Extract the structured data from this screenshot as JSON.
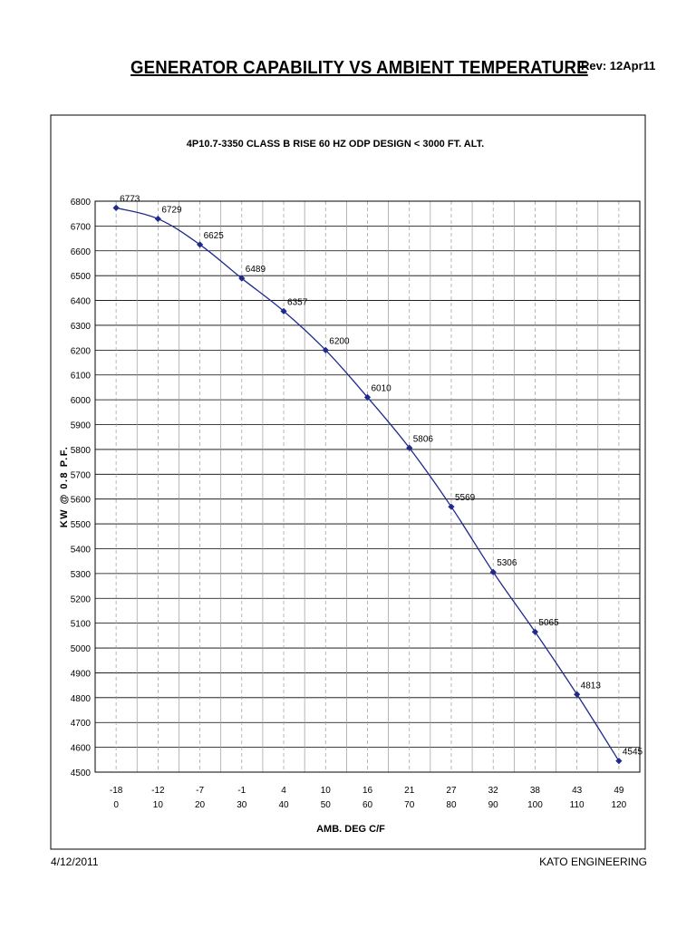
{
  "page": {
    "title": "GENERATOR CAPABILITY  VS  AMBIENT TEMPERATURE",
    "revision": "Rev: 12Apr11",
    "footer_date": "4/12/2011",
    "footer_company": "KATO ENGINEERING"
  },
  "chart_data": {
    "type": "line",
    "title": "4P10.7-3350  CLASS B RISE  60 HZ  ODP DESIGN  < 3000 FT. ALT.",
    "xlabel": "AMB. DEG C/F",
    "ylabel": "KW @ 0.8 P.F.",
    "x_celsius": [
      "-18",
      "-12",
      "-7",
      "-1",
      "4",
      "10",
      "16",
      "21",
      "27",
      "32",
      "38",
      "43",
      "49"
    ],
    "x_fahrenheit": [
      "0",
      "10",
      "20",
      "30",
      "40",
      "50",
      "60",
      "70",
      "80",
      "90",
      "100",
      "110",
      "120"
    ],
    "x": [
      0,
      10,
      20,
      30,
      40,
      50,
      60,
      70,
      80,
      90,
      100,
      110,
      120
    ],
    "series": [
      {
        "values": [
          6773,
          6729,
          6625,
          6489,
          6357,
          6200,
          6010,
          5806,
          5569,
          5306,
          5065,
          4813,
          4545
        ]
      }
    ],
    "data_labels": [
      "6773",
      "6729",
      "6625",
      "6489",
      "6357",
      "6200",
      "6010",
      "5806",
      "5569",
      "5306",
      "5065",
      "4813",
      "4545"
    ],
    "ylim": [
      4500,
      6800
    ],
    "y_ticks": [
      "4500",
      "4600",
      "4700",
      "4800",
      "4900",
      "5000",
      "5100",
      "5200",
      "5300",
      "5400",
      "5500",
      "5600",
      "5700",
      "5800",
      "5900",
      "6000",
      "6100",
      "6200",
      "6300",
      "6400",
      "6500",
      "6600",
      "6700",
      "6800"
    ],
    "grid": true,
    "series_color": "#1f2a8c"
  }
}
